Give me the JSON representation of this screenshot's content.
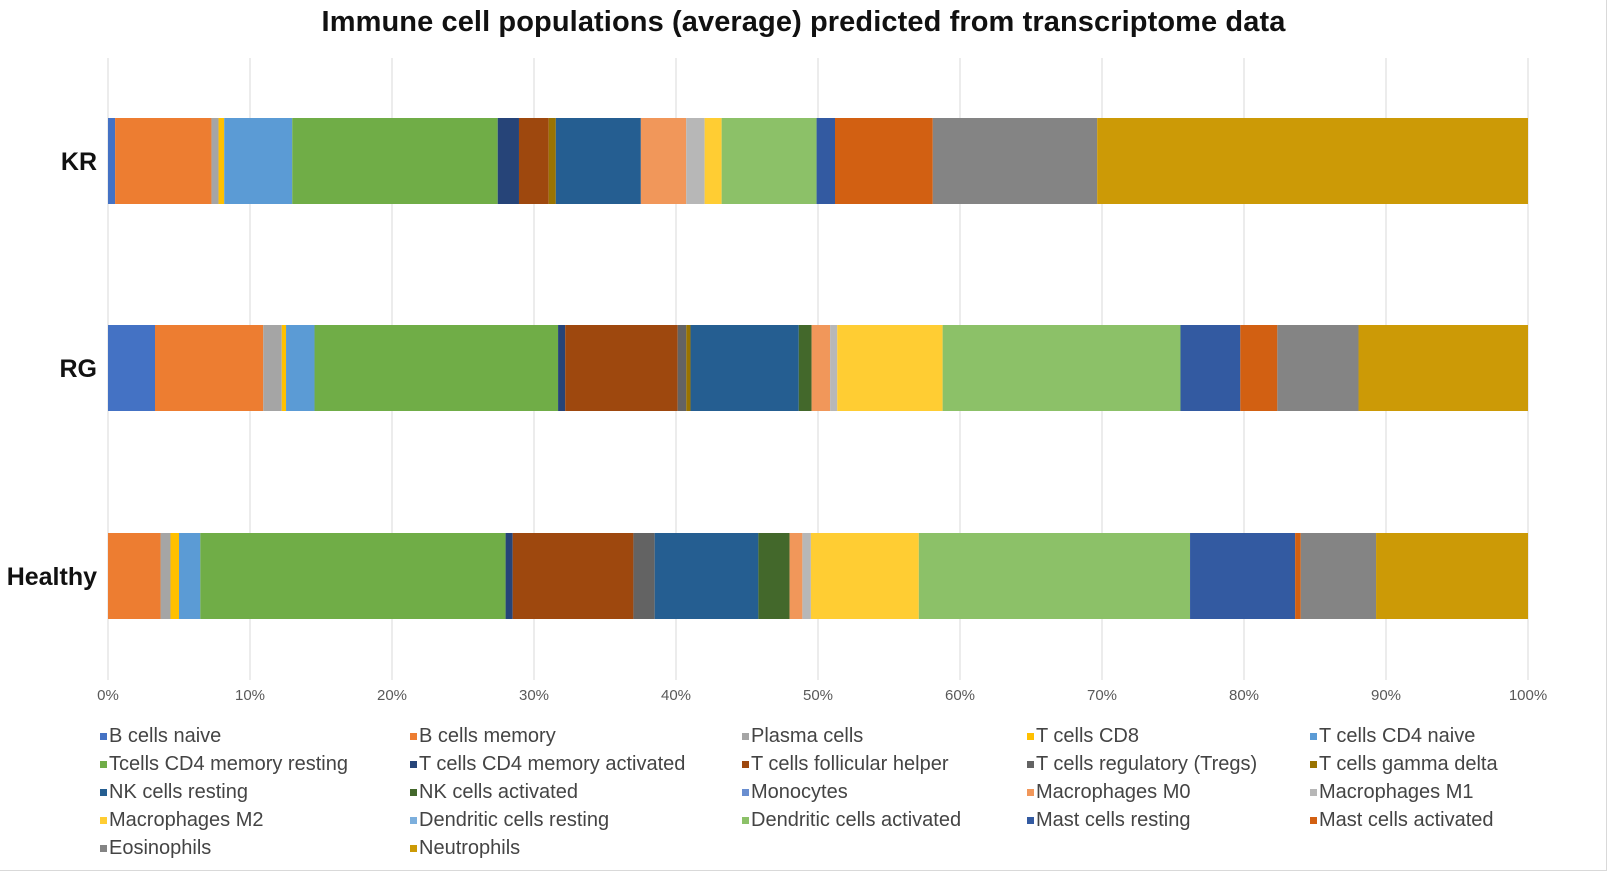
{
  "chart_data": {
    "type": "bar",
    "orientation": "horizontal",
    "stacked": "percent",
    "title": "Immune cell populations (average) predicted from transcriptome data",
    "xlabel": "",
    "ylabel": "",
    "xlim": [
      0,
      100
    ],
    "x_ticks": [
      "0%",
      "10%",
      "20%",
      "30%",
      "40%",
      "50%",
      "60%",
      "70%",
      "80%",
      "90%",
      "100%"
    ],
    "categories": [
      "KR",
      "RG",
      "Healthy"
    ],
    "grid": true,
    "legend_position": "bottom",
    "series": [
      {
        "name": "B cells naive",
        "color": "#4472C4",
        "values": [
          0.5,
          3.3,
          0.0
        ]
      },
      {
        "name": "B cells memory",
        "color": "#ED7D31",
        "values": [
          6.8,
          7.6,
          3.7
        ]
      },
      {
        "name": "Plasma cells",
        "color": "#A5A5A5",
        "values": [
          0.5,
          1.3,
          0.7
        ]
      },
      {
        "name": "T cells CD8",
        "color": "#FFC000",
        "values": [
          0.4,
          0.3,
          0.6
        ]
      },
      {
        "name": "T cells CD4 naive",
        "color": "#5B9BD5",
        "values": [
          4.8,
          2.0,
          1.5
        ]
      },
      {
        "name": "Tcells CD4 memory resting",
        "color": "#70AD47",
        "values": [
          14.5,
          17.1,
          21.5
        ]
      },
      {
        "name": "T cells CD4 memory activated",
        "color": "#264478",
        "values": [
          1.5,
          0.5,
          0.5
        ]
      },
      {
        "name": "T cells follicular helper",
        "color": "#9E480E",
        "values": [
          2.1,
          7.9,
          8.5
        ]
      },
      {
        "name": "T cells regulatory (Tregs)",
        "color": "#636363",
        "values": [
          0.0,
          0.6,
          1.5
        ]
      },
      {
        "name": "T cells gamma delta",
        "color": "#997300",
        "values": [
          0.5,
          0.3,
          0.0
        ]
      },
      {
        "name": "NK cells resting",
        "color": "#255E91",
        "values": [
          6.0,
          7.6,
          7.3
        ]
      },
      {
        "name": "NK cells activated",
        "color": "#43682B",
        "values": [
          0.0,
          0.9,
          2.2
        ]
      },
      {
        "name": "Monocytes",
        "color": "#698ED0",
        "values": [
          0.0,
          0.0,
          0.0
        ]
      },
      {
        "name": "Macrophages M0",
        "color": "#F1975A",
        "values": [
          3.2,
          1.3,
          0.9
        ]
      },
      {
        "name": "Macrophages M1",
        "color": "#B7B7B7",
        "values": [
          1.3,
          0.5,
          0.6
        ]
      },
      {
        "name": "Macrophages M2",
        "color": "#FFCD33",
        "values": [
          1.2,
          7.4,
          7.6
        ]
      },
      {
        "name": "Dendritic cells resting",
        "color": "#7CAFDD",
        "values": [
          0.0,
          0.0,
          0.0
        ]
      },
      {
        "name": "Dendritic cells activated",
        "color": "#8CC168",
        "values": [
          6.7,
          16.7,
          19.1
        ]
      },
      {
        "name": "Mast cells resting",
        "color": "#335AA1",
        "values": [
          1.3,
          4.2,
          7.4
        ]
      },
      {
        "name": "Mast cells activated",
        "color": "#D26012",
        "values": [
          6.9,
          2.6,
          0.4
        ]
      },
      {
        "name": "Eosinophils",
        "color": "#848484",
        "values": [
          11.6,
          5.7,
          5.3
        ]
      },
      {
        "name": "Neutrophils",
        "color": "#CC9A06",
        "values": [
          30.4,
          11.9,
          10.7
        ]
      }
    ]
  }
}
